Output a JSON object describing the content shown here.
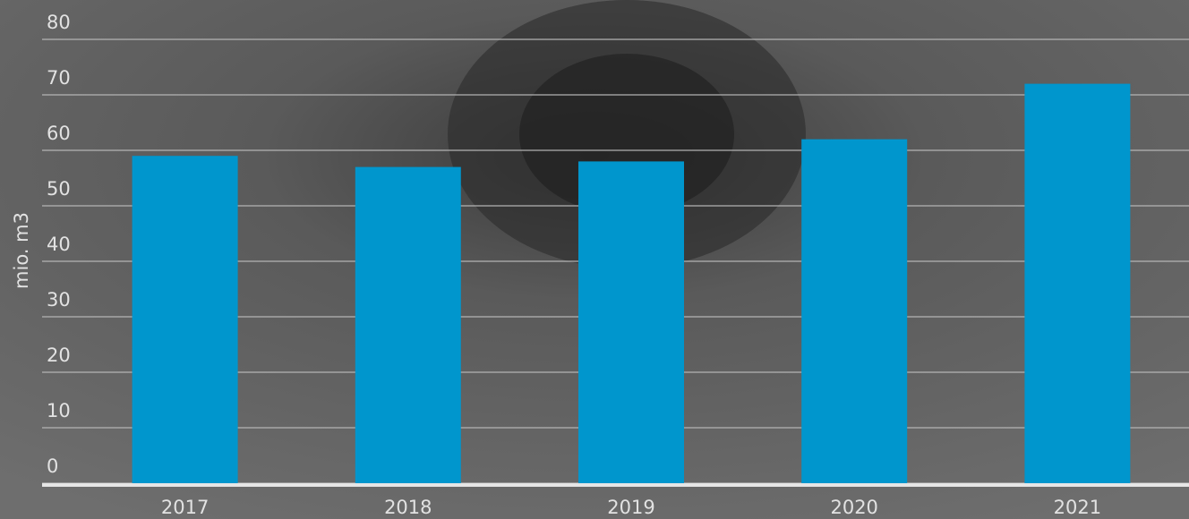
{
  "chart_data": {
    "type": "bar",
    "y_label": "mio. m3",
    "categories": [
      "2017",
      "2018",
      "2019",
      "2020",
      "2021"
    ],
    "values": [
      59,
      57,
      58,
      62,
      72
    ],
    "color": "#0096cd",
    "ylim": [
      0,
      80
    ],
    "yticks": [
      0,
      10,
      20,
      30,
      40,
      50,
      60,
      70,
      80
    ],
    "grid": true
  }
}
